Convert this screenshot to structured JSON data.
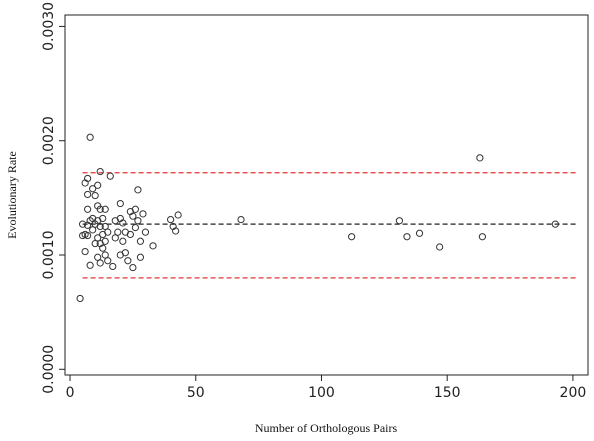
{
  "chart_data": {
    "type": "scatter",
    "title": "",
    "xlabel": "Number of Orthologous Pairs",
    "ylabel": "Evolutionary Rate",
    "xlim": [
      -2,
      206
    ],
    "ylim": [
      -5e-05,
      0.0031
    ],
    "xticks": [
      0,
      50,
      100,
      150,
      200
    ],
    "xtick_labels": [
      "0",
      "50",
      "100",
      "150",
      "200"
    ],
    "yticks": [
      0.0,
      0.001,
      0.002,
      0.003
    ],
    "ytick_labels": [
      "0.0000",
      "0.0010",
      "0.0020",
      "0.0030"
    ],
    "grid": false,
    "reference_lines": [
      {
        "y": 0.00172,
        "color": "#e8333a",
        "style": "dashed"
      },
      {
        "y": 0.00127,
        "color": "#222222",
        "style": "dashed"
      },
      {
        "y": 0.0008,
        "color": "#e8333a",
        "style": "dashed"
      }
    ],
    "marker_color": "#333333",
    "points": [
      [
        4,
        0.00062
      ],
      [
        5,
        0.00117
      ],
      [
        5,
        0.00127
      ],
      [
        6,
        0.00103
      ],
      [
        6,
        0.00118
      ],
      [
        6,
        0.00163
      ],
      [
        7,
        0.00167
      ],
      [
        7,
        0.00153
      ],
      [
        7,
        0.0014
      ],
      [
        7,
        0.00126
      ],
      [
        7,
        0.00117
      ],
      [
        8,
        0.00203
      ],
      [
        8,
        0.0013
      ],
      [
        8,
        0.00091
      ],
      [
        9,
        0.00158
      ],
      [
        9,
        0.00132
      ],
      [
        9,
        0.00122
      ],
      [
        10,
        0.00152
      ],
      [
        10,
        0.00127
      ],
      [
        10,
        0.0011
      ],
      [
        11,
        0.00161
      ],
      [
        11,
        0.00143
      ],
      [
        11,
        0.0013
      ],
      [
        11,
        0.00115
      ],
      [
        11,
        0.00098
      ],
      [
        12,
        0.00173
      ],
      [
        12,
        0.0014
      ],
      [
        12,
        0.00125
      ],
      [
        12,
        0.0011
      ],
      [
        12,
        0.00093
      ],
      [
        13,
        0.00132
      ],
      [
        13,
        0.00118
      ],
      [
        13,
        0.00106
      ],
      [
        14,
        0.0014
      ],
      [
        14,
        0.00125
      ],
      [
        14,
        0.00112
      ],
      [
        14,
        0.001
      ],
      [
        15,
        0.0012
      ],
      [
        15,
        0.00095
      ],
      [
        16,
        0.00169
      ],
      [
        17,
        0.0009
      ],
      [
        18,
        0.0013
      ],
      [
        18,
        0.00115
      ],
      [
        19,
        0.0012
      ],
      [
        20,
        0.00145
      ],
      [
        20,
        0.00132
      ],
      [
        20,
        0.001
      ],
      [
        21,
        0.00128
      ],
      [
        21,
        0.00112
      ],
      [
        22,
        0.0012
      ],
      [
        22,
        0.00102
      ],
      [
        23,
        0.00095
      ],
      [
        24,
        0.00138
      ],
      [
        24,
        0.00118
      ],
      [
        25,
        0.00134
      ],
      [
        25,
        0.00089
      ],
      [
        26,
        0.0014
      ],
      [
        26,
        0.00124
      ],
      [
        27,
        0.00157
      ],
      [
        27,
        0.0013
      ],
      [
        28,
        0.00112
      ],
      [
        28,
        0.00098
      ],
      [
        29,
        0.00136
      ],
      [
        30,
        0.0012
      ],
      [
        33,
        0.00108
      ],
      [
        40,
        0.00131
      ],
      [
        41,
        0.00125
      ],
      [
        42,
        0.00121
      ],
      [
        43,
        0.00135
      ],
      [
        68,
        0.00131
      ],
      [
        112,
        0.00116
      ],
      [
        131,
        0.0013
      ],
      [
        134,
        0.00116
      ],
      [
        139,
        0.00119
      ],
      [
        147,
        0.00107
      ],
      [
        163,
        0.00185
      ],
      [
        164,
        0.00116
      ],
      [
        193,
        0.00127
      ]
    ]
  }
}
